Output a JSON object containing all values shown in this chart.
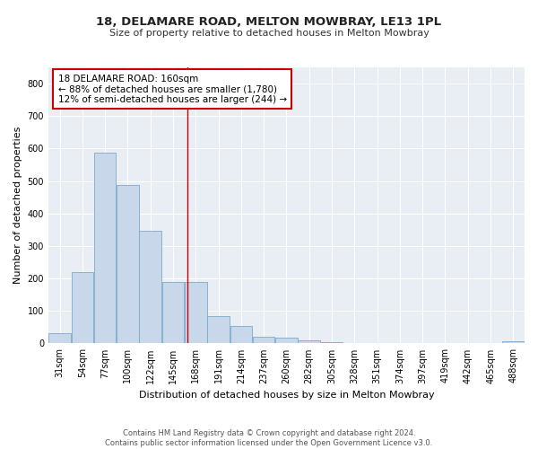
{
  "title": "18, DELAMARE ROAD, MELTON MOWBRAY, LE13 1PL",
  "subtitle": "Size of property relative to detached houses in Melton Mowbray",
  "xlabel": "Distribution of detached houses by size in Melton Mowbray",
  "ylabel": "Number of detached properties",
  "categories": [
    "31sqm",
    "54sqm",
    "77sqm",
    "100sqm",
    "122sqm",
    "145sqm",
    "168sqm",
    "191sqm",
    "214sqm",
    "237sqm",
    "260sqm",
    "282sqm",
    "305sqm",
    "328sqm",
    "351sqm",
    "374sqm",
    "397sqm",
    "419sqm",
    "442sqm",
    "465sqm",
    "488sqm"
  ],
  "values": [
    32,
    220,
    588,
    487,
    348,
    190,
    190,
    85,
    55,
    20,
    17,
    10,
    5,
    2,
    0,
    0,
    0,
    0,
    0,
    0,
    8
  ],
  "bar_color": "#c8d8ea",
  "bar_edge_color": "#7aaac8",
  "property_line_color": "#cc0000",
  "annotation_text": "18 DELAMARE ROAD: 160sqm\n← 88% of detached houses are smaller (1,780)\n12% of semi-detached houses are larger (244) →",
  "annotation_box_color": "#ffffff",
  "annotation_box_edge_color": "#cc0000",
  "ylim": [
    0,
    850
  ],
  "yticks": [
    0,
    100,
    200,
    300,
    400,
    500,
    600,
    700,
    800
  ],
  "plot_bg_color": "#e8eef4",
  "fig_bg_color": "#ffffff",
  "grid_color": "#ffffff",
  "footer_line1": "Contains HM Land Registry data © Crown copyright and database right 2024.",
  "footer_line2": "Contains public sector information licensed under the Open Government Licence v3.0.",
  "title_fontsize": 9.5,
  "subtitle_fontsize": 8,
  "xlabel_fontsize": 8,
  "ylabel_fontsize": 8,
  "tick_fontsize": 7,
  "annotation_fontsize": 7.5,
  "footer_fontsize": 6
}
